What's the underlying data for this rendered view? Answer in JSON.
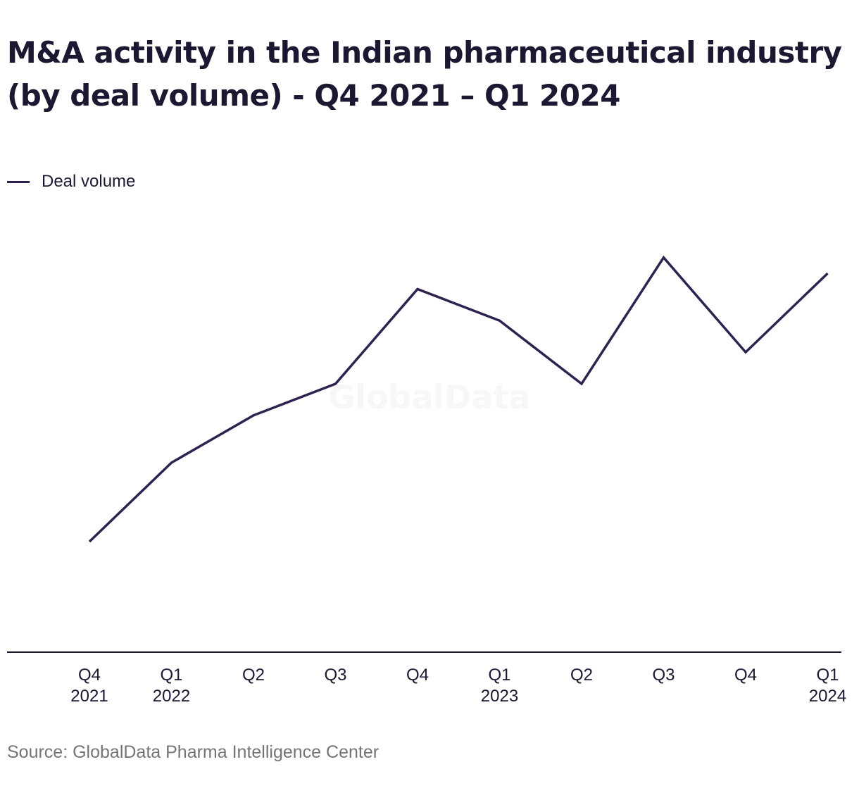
{
  "title": "M&A activity in the Indian pharmaceutical industry (by deal volume) - Q4 2021 – Q1 2024",
  "source": "Source: GlobalData Pharma Intelligence Center",
  "watermark": "GlobalData",
  "colors": {
    "line": "#2f2250",
    "axis": "#1b1832",
    "text": "#1b1832",
    "source": "#757575"
  },
  "chart_data": {
    "type": "line",
    "title": "M&A activity in the Indian pharmaceutical industry (by deal volume) - Q4 2021 – Q1 2024",
    "xlabel": "",
    "ylabel": "",
    "categories": [
      [
        "Q4",
        "2021"
      ],
      [
        "Q1",
        "2022"
      ],
      [
        "Q2",
        ""
      ],
      [
        "Q3",
        ""
      ],
      [
        "Q4",
        ""
      ],
      [
        "Q1",
        "2023"
      ],
      [
        "Q2",
        ""
      ],
      [
        "Q3",
        ""
      ],
      [
        "Q4",
        ""
      ],
      [
        "Q1",
        "2024"
      ]
    ],
    "series": [
      {
        "name": "Deal volume",
        "values": [
          7,
          12,
          15,
          17,
          23,
          21,
          17,
          25,
          19,
          24
        ]
      }
    ],
    "ylim": [
      0,
      29
    ],
    "grid": false,
    "legend": "top-left"
  }
}
